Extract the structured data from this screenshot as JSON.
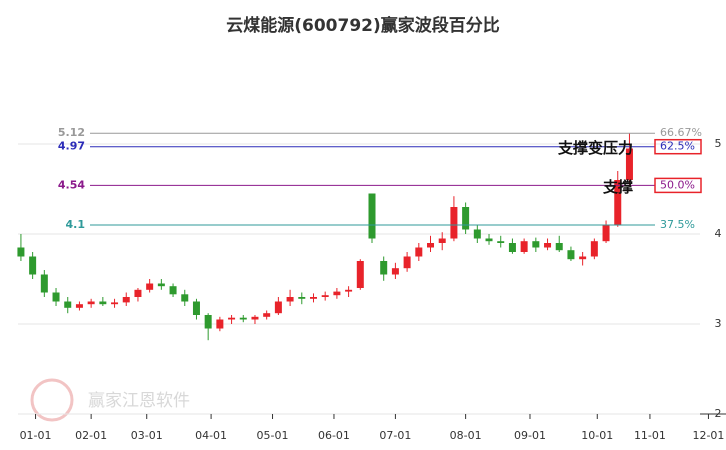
{
  "chart_data": {
    "type": "candlestick",
    "title": "云煤能源(600792)赢家波段百分比",
    "watermark": "赢家江恩软件",
    "x": [
      0,
      4,
      8,
      12,
      16,
      20,
      24,
      28,
      32,
      36,
      40,
      44,
      48,
      52,
      56,
      60,
      64,
      68,
      72,
      76,
      80,
      84,
      88,
      92,
      96,
      100,
      104,
      108,
      112,
      116,
      120,
      124,
      128,
      132,
      136,
      140,
      144,
      148,
      152,
      156,
      160,
      164,
      168,
      172,
      176,
      180,
      184,
      188,
      192,
      196,
      200,
      204,
      208
    ],
    "open": [
      3.85,
      3.75,
      3.55,
      3.35,
      3.25,
      3.18,
      3.22,
      3.25,
      3.22,
      3.24,
      3.3,
      3.38,
      3.45,
      3.42,
      3.33,
      3.25,
      3.1,
      2.95,
      3.05,
      3.07,
      3.05,
      3.08,
      3.12,
      3.25,
      3.3,
      3.28,
      3.3,
      3.32,
      3.36,
      3.4,
      4.45,
      3.7,
      3.55,
      3.62,
      3.75,
      3.85,
      3.9,
      3.95,
      4.3,
      4.05,
      3.95,
      3.92,
      3.9,
      3.8,
      3.92,
      3.85,
      3.9,
      3.82,
      3.72,
      3.75,
      3.92,
      4.1,
      4.6
    ],
    "high": [
      4.0,
      3.8,
      3.6,
      3.4,
      3.3,
      3.25,
      3.28,
      3.3,
      3.28,
      3.35,
      3.4,
      3.5,
      3.5,
      3.45,
      3.38,
      3.28,
      3.12,
      3.08,
      3.1,
      3.1,
      3.1,
      3.15,
      3.3,
      3.38,
      3.35,
      3.34,
      3.36,
      3.4,
      3.42,
      3.72,
      4.45,
      3.75,
      3.68,
      3.8,
      3.9,
      3.98,
      4.02,
      4.42,
      4.35,
      4.1,
      4.0,
      3.98,
      3.95,
      3.95,
      3.96,
      3.95,
      3.98,
      3.86,
      3.8,
      3.95,
      4.15,
      4.7,
      5.12
    ],
    "low": [
      3.7,
      3.5,
      3.3,
      3.2,
      3.12,
      3.15,
      3.18,
      3.2,
      3.18,
      3.2,
      3.25,
      3.35,
      3.38,
      3.3,
      3.2,
      3.05,
      2.82,
      2.92,
      3.0,
      3.02,
      3.0,
      3.05,
      3.1,
      3.2,
      3.22,
      3.24,
      3.26,
      3.28,
      3.3,
      3.38,
      3.9,
      3.48,
      3.5,
      3.58,
      3.7,
      3.8,
      3.82,
      3.92,
      4.0,
      3.9,
      3.88,
      3.85,
      3.78,
      3.78,
      3.8,
      3.82,
      3.8,
      3.7,
      3.65,
      3.72,
      3.9,
      4.08,
      4.55
    ],
    "close": [
      3.75,
      3.55,
      3.35,
      3.25,
      3.18,
      3.22,
      3.25,
      3.22,
      3.24,
      3.3,
      3.38,
      3.45,
      3.42,
      3.33,
      3.25,
      3.1,
      2.95,
      3.05,
      3.07,
      3.05,
      3.08,
      3.12,
      3.25,
      3.3,
      3.28,
      3.3,
      3.32,
      3.36,
      3.38,
      3.7,
      3.95,
      3.55,
      3.62,
      3.75,
      3.85,
      3.9,
      3.95,
      4.3,
      4.05,
      3.95,
      3.92,
      3.9,
      3.8,
      3.92,
      3.85,
      3.9,
      3.82,
      3.72,
      3.75,
      3.92,
      4.1,
      4.6,
      4.95
    ],
    "up_color": "#e8232a",
    "down_color": "#2e9a2e",
    "xlim": [
      -1,
      241
    ],
    "ylim": [
      2,
      5.9
    ],
    "xticks": [
      {
        "value": 5,
        "label": "01-01"
      },
      {
        "value": 24,
        "label": "02-01"
      },
      {
        "value": 43,
        "label": "03-01"
      },
      {
        "value": 65,
        "label": "04-01"
      },
      {
        "value": 86,
        "label": "05-01"
      },
      {
        "value": 107,
        "label": "06-01"
      },
      {
        "value": 128,
        "label": "07-01"
      },
      {
        "value": 152,
        "label": "08-01"
      },
      {
        "value": 174,
        "label": "09-01"
      },
      {
        "value": 197,
        "label": "10-01"
      },
      {
        "value": 215,
        "label": "11-01"
      },
      {
        "value": 235,
        "label": "12-01"
      }
    ],
    "yticks": [
      2,
      3,
      4,
      5
    ],
    "levels": [
      {
        "value": 5.12,
        "pct": "66.67%",
        "color": "#999999"
      },
      {
        "value": 4.97,
        "pct": "62.5%",
        "color": "#2b2bb8",
        "boxed": true,
        "note": "支撑变压力"
      },
      {
        "value": 4.54,
        "pct": "50.0%",
        "color": "#8b1a8b",
        "boxed": true,
        "note": "支撑"
      },
      {
        "value": 4.1,
        "pct": "37.5%",
        "color": "#2f9a9a"
      }
    ]
  }
}
